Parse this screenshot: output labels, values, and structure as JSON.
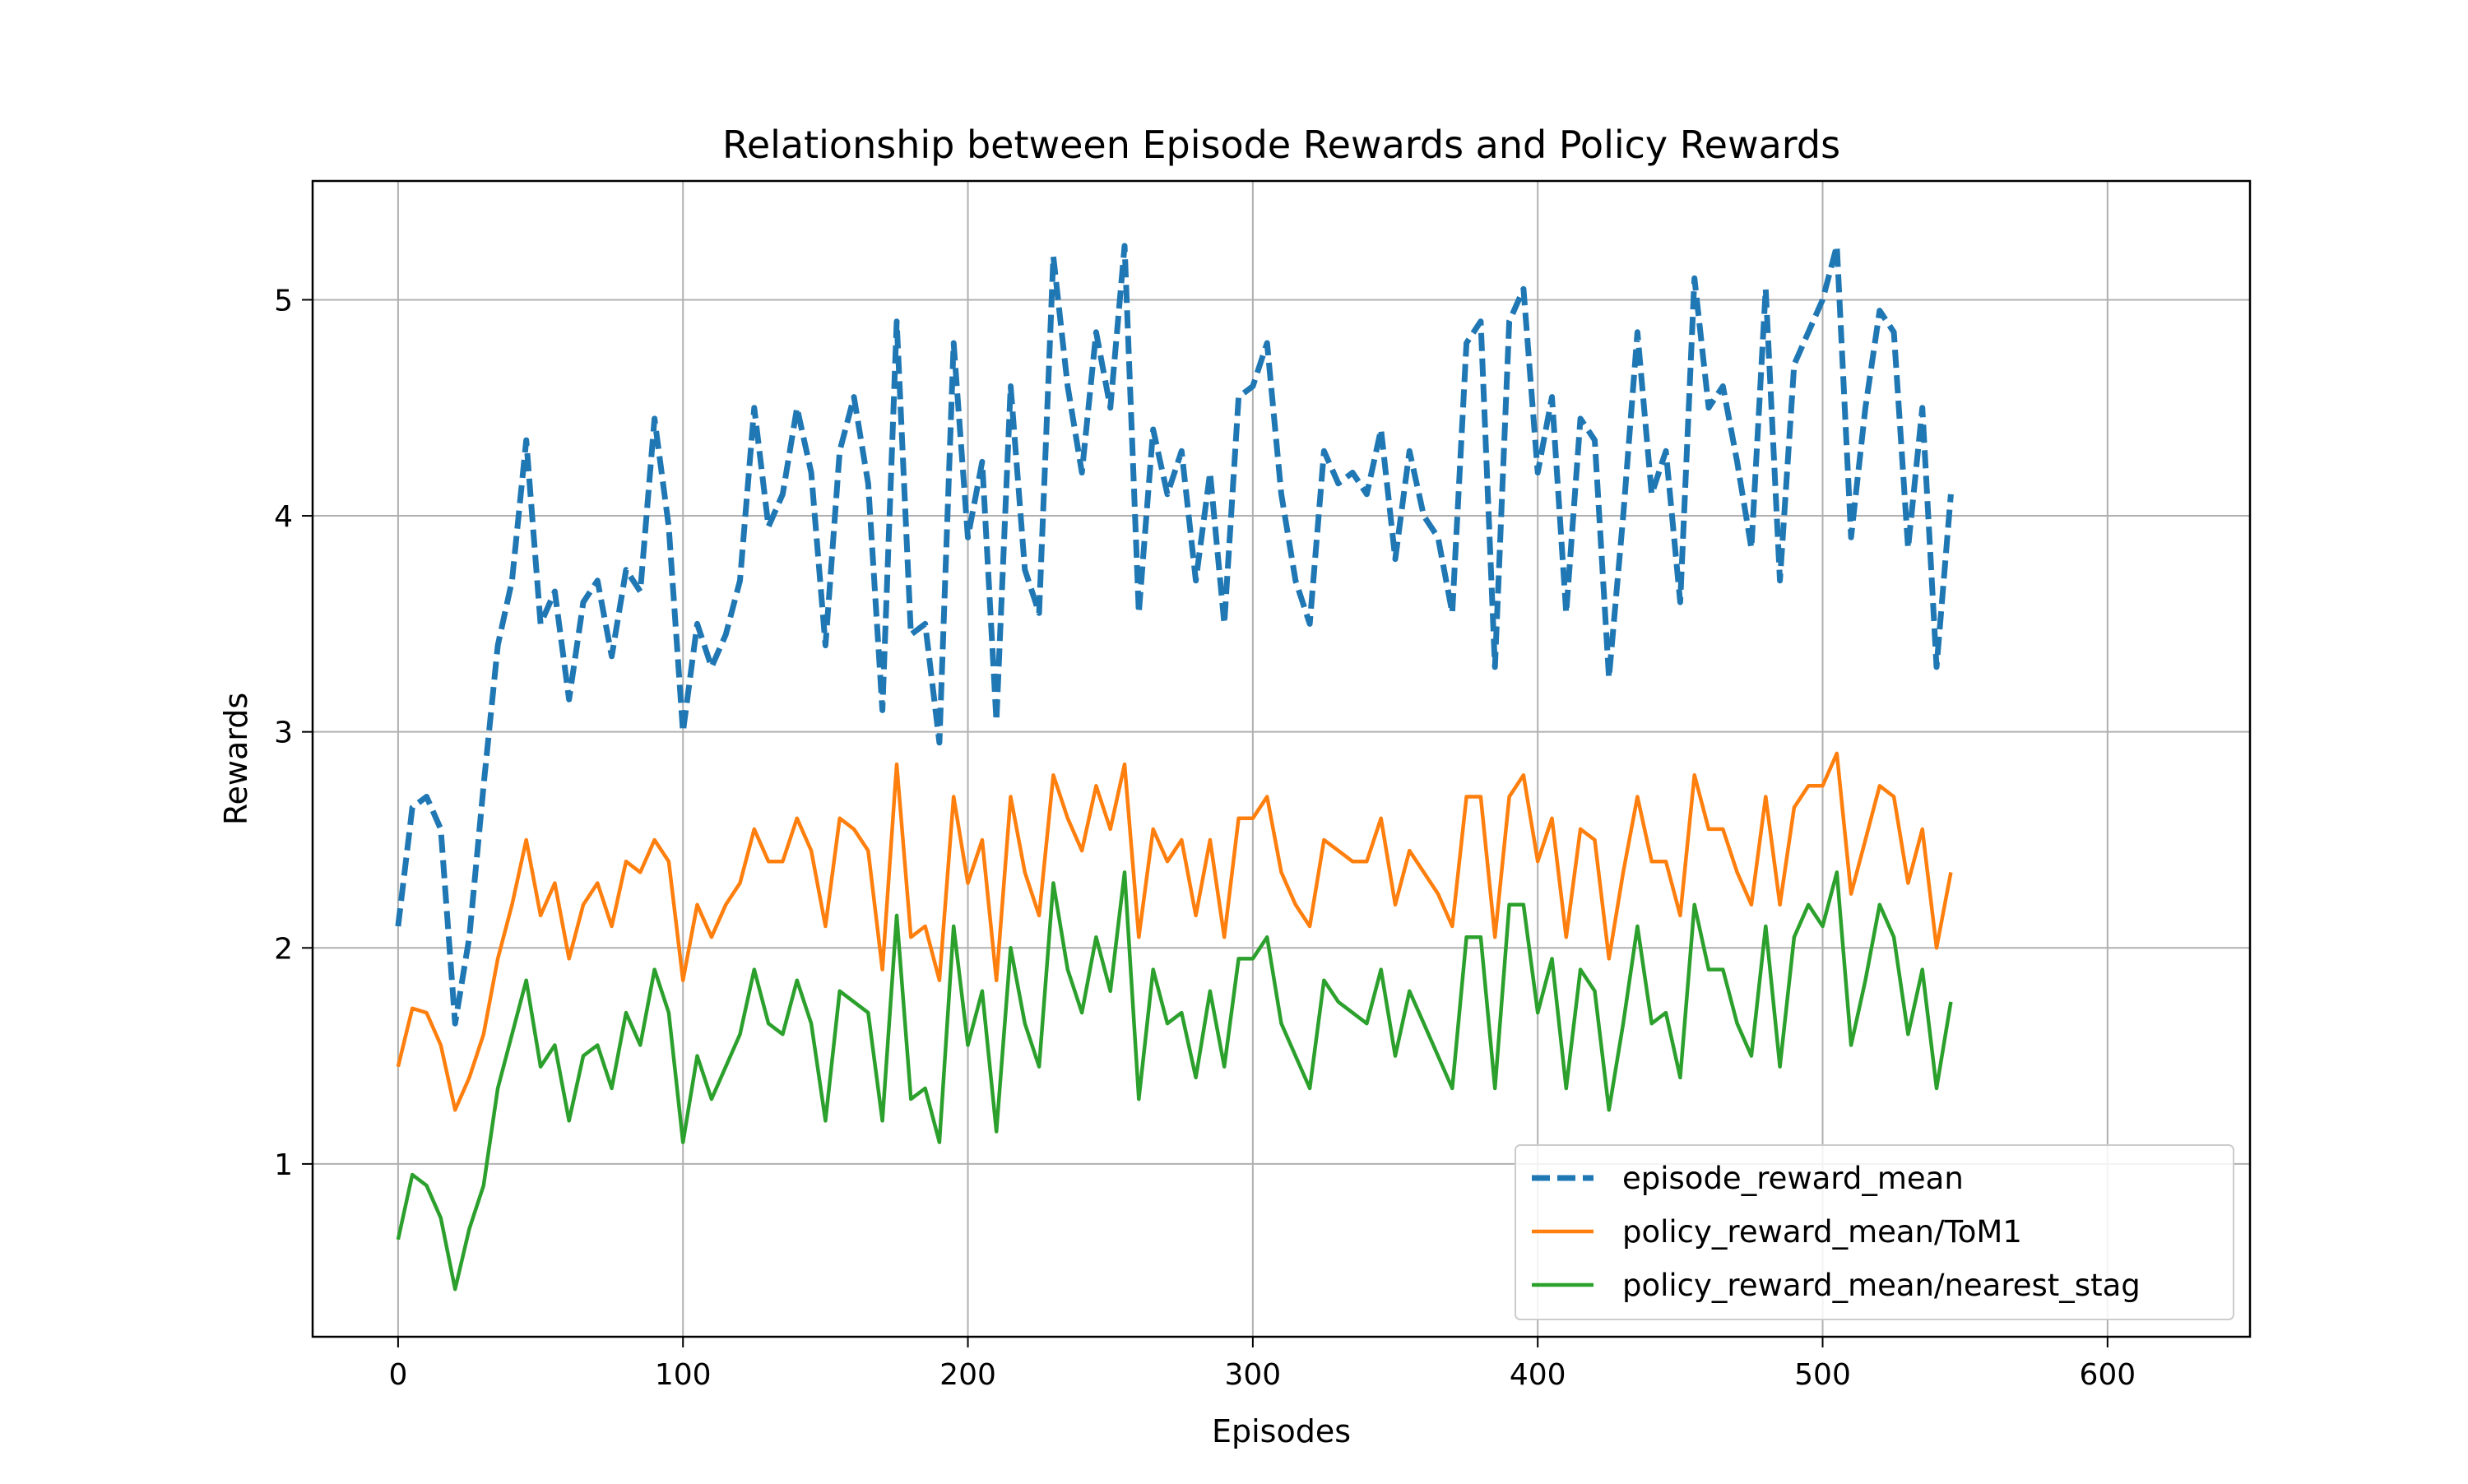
{
  "chart_data": {
    "type": "line",
    "title": "Relationship between Episode Rewards and Policy Rewards",
    "xlabel": "Episodes",
    "ylabel": "Rewards",
    "xlim": [
      -30,
      650
    ],
    "ylim": [
      0.2,
      5.55
    ],
    "xticks": [
      0,
      100,
      200,
      300,
      400,
      500,
      600
    ],
    "yticks": [
      1,
      2,
      3,
      4,
      5
    ],
    "grid": true,
    "legend_position": "lower-right",
    "x_step": 5,
    "series": [
      {
        "name": "episode_reward_mean",
        "color": "#1f77b4",
        "style": "dashed",
        "values": [
          2.1,
          2.65,
          2.7,
          2.55,
          1.65,
          2.05,
          2.75,
          3.4,
          3.7,
          4.35,
          3.5,
          3.65,
          3.15,
          3.6,
          3.7,
          3.35,
          3.75,
          3.65,
          4.45,
          3.95,
          3.0,
          3.5,
          3.3,
          3.45,
          3.7,
          4.5,
          3.95,
          4.1,
          4.5,
          4.2,
          3.4,
          4.3,
          4.55,
          4.15,
          3.1,
          4.9,
          3.45,
          3.5,
          2.95,
          4.8,
          3.9,
          4.25,
          3.05,
          4.6,
          3.75,
          3.55,
          5.2,
          4.6,
          4.2,
          4.85,
          4.5,
          5.25,
          3.55,
          4.4,
          4.1,
          4.3,
          3.7,
          4.2,
          3.5,
          4.55,
          4.6,
          4.8,
          4.1,
          3.7,
          3.5,
          4.3,
          4.15,
          4.2,
          4.1,
          4.4,
          3.8,
          4.3,
          4.0,
          3.9,
          3.55,
          4.8,
          4.9,
          3.3,
          4.9,
          5.05,
          4.2,
          4.55,
          3.55,
          4.45,
          4.35,
          3.25,
          4.0,
          4.85,
          4.1,
          4.3,
          3.6,
          5.1,
          4.5,
          4.6,
          4.25,
          3.85,
          5.05,
          3.7,
          4.7,
          4.85,
          5.0,
          5.25,
          3.9,
          4.5,
          4.95,
          4.85,
          3.85,
          4.5,
          3.3,
          4.1
        ]
      },
      {
        "name": "policy_reward_mean/ToM1",
        "color": "#ff7f0e",
        "style": "solid",
        "values": [
          1.45,
          1.72,
          1.7,
          1.55,
          1.25,
          1.4,
          1.6,
          1.95,
          2.2,
          2.5,
          2.15,
          2.3,
          1.95,
          2.2,
          2.3,
          2.1,
          2.4,
          2.35,
          2.5,
          2.4,
          1.85,
          2.2,
          2.05,
          2.2,
          2.3,
          2.55,
          2.4,
          2.4,
          2.6,
          2.45,
          2.1,
          2.6,
          2.55,
          2.45,
          1.9,
          2.85,
          2.05,
          2.1,
          1.85,
          2.7,
          2.3,
          2.5,
          1.85,
          2.7,
          2.35,
          2.15,
          2.8,
          2.6,
          2.45,
          2.75,
          2.55,
          2.85,
          2.05,
          2.55,
          2.4,
          2.5,
          2.15,
          2.5,
          2.05,
          2.6,
          2.6,
          2.7,
          2.35,
          2.2,
          2.1,
          2.5,
          2.45,
          2.4,
          2.4,
          2.6,
          2.2,
          2.45,
          2.35,
          2.25,
          2.1,
          2.7,
          2.7,
          2.05,
          2.7,
          2.8,
          2.4,
          2.6,
          2.05,
          2.55,
          2.5,
          1.95,
          2.35,
          2.7,
          2.4,
          2.4,
          2.15,
          2.8,
          2.55,
          2.55,
          2.35,
          2.2,
          2.7,
          2.2,
          2.65,
          2.75,
          2.75,
          2.9,
          2.25,
          2.5,
          2.75,
          2.7,
          2.3,
          2.55,
          2.0,
          2.35
        ]
      },
      {
        "name": "policy_reward_mean/nearest_stag",
        "color": "#2ca02c",
        "style": "solid",
        "values": [
          0.65,
          0.95,
          0.9,
          0.75,
          0.42,
          0.7,
          0.9,
          1.35,
          1.6,
          1.85,
          1.45,
          1.55,
          1.2,
          1.5,
          1.55,
          1.35,
          1.7,
          1.55,
          1.9,
          1.7,
          1.1,
          1.5,
          1.3,
          1.45,
          1.6,
          1.9,
          1.65,
          1.6,
          1.85,
          1.65,
          1.2,
          1.8,
          1.75,
          1.7,
          1.2,
          2.15,
          1.3,
          1.35,
          1.1,
          2.1,
          1.55,
          1.8,
          1.15,
          2.0,
          1.65,
          1.45,
          2.3,
          1.9,
          1.7,
          2.05,
          1.8,
          2.35,
          1.3,
          1.9,
          1.65,
          1.7,
          1.4,
          1.8,
          1.45,
          1.95,
          1.95,
          2.05,
          1.65,
          1.5,
          1.35,
          1.85,
          1.75,
          1.7,
          1.65,
          1.9,
          1.5,
          1.8,
          1.65,
          1.5,
          1.35,
          2.05,
          2.05,
          1.35,
          2.2,
          2.2,
          1.7,
          1.95,
          1.35,
          1.9,
          1.8,
          1.25,
          1.65,
          2.1,
          1.65,
          1.7,
          1.4,
          2.2,
          1.9,
          1.9,
          1.65,
          1.5,
          2.1,
          1.45,
          2.05,
          2.2,
          2.1,
          2.35,
          1.55,
          1.85,
          2.2,
          2.05,
          1.6,
          1.9,
          1.35,
          1.75
        ]
      }
    ]
  }
}
